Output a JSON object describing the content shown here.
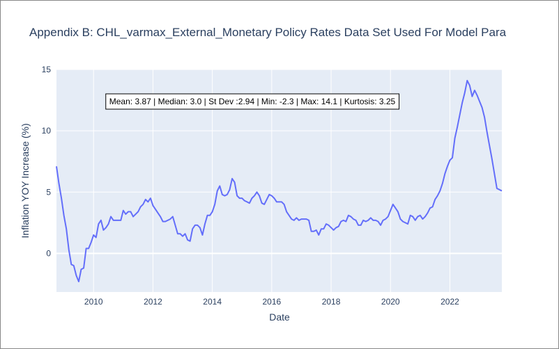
{
  "chart_data": {
    "type": "line",
    "title": "Appendix B: CHL_varmax_External_Monetary Policy Rates Data Set Used For Model Para",
    "x_label": "Date",
    "y_label": "Inflation YOY Increase (%)",
    "annotation": "Mean: 3.87 | Median: 3.0 | St Dev :2.94 | Min: -2.3 | Max: 14.1 | Kurtosis: 3.25",
    "color": "#636efa",
    "grid": true,
    "xlim": [
      2008.75,
      2023.75
    ],
    "xticks": [
      2010,
      2012,
      2014,
      2016,
      2018,
      2020,
      2022
    ],
    "ylim": [
      -3.15,
      15
    ],
    "yticks": [
      0,
      5,
      10,
      15
    ],
    "x": [
      2008.75,
      2008.833,
      2008.917,
      2009,
      2009.083,
      2009.167,
      2009.25,
      2009.333,
      2009.417,
      2009.5,
      2009.583,
      2009.667,
      2009.75,
      2009.833,
      2009.917,
      2010,
      2010.083,
      2010.167,
      2010.25,
      2010.333,
      2010.417,
      2010.5,
      2010.583,
      2010.667,
      2010.75,
      2010.833,
      2010.917,
      2011,
      2011.083,
      2011.167,
      2011.25,
      2011.333,
      2011.417,
      2011.5,
      2011.583,
      2011.667,
      2011.75,
      2011.833,
      2011.917,
      2012,
      2012.083,
      2012.167,
      2012.25,
      2012.333,
      2012.417,
      2012.5,
      2012.583,
      2012.667,
      2012.75,
      2012.833,
      2012.917,
      2013,
      2013.083,
      2013.167,
      2013.25,
      2013.333,
      2013.417,
      2013.5,
      2013.583,
      2013.667,
      2013.75,
      2013.833,
      2013.917,
      2014,
      2014.083,
      2014.167,
      2014.25,
      2014.333,
      2014.417,
      2014.5,
      2014.583,
      2014.667,
      2014.75,
      2014.833,
      2014.917,
      2015,
      2015.083,
      2015.167,
      2015.25,
      2015.333,
      2015.417,
      2015.5,
      2015.583,
      2015.667,
      2015.75,
      2015.833,
      2015.917,
      2016,
      2016.083,
      2016.167,
      2016.25,
      2016.333,
      2016.417,
      2016.5,
      2016.583,
      2016.667,
      2016.75,
      2016.833,
      2016.917,
      2017,
      2017.083,
      2017.167,
      2017.25,
      2017.333,
      2017.417,
      2017.5,
      2017.583,
      2017.667,
      2017.75,
      2017.833,
      2017.917,
      2018,
      2018.083,
      2018.167,
      2018.25,
      2018.333,
      2018.417,
      2018.5,
      2018.583,
      2018.667,
      2018.75,
      2018.833,
      2018.917,
      2019,
      2019.083,
      2019.167,
      2019.25,
      2019.333,
      2019.417,
      2019.5,
      2019.583,
      2019.667,
      2019.75,
      2019.833,
      2019.917,
      2020,
      2020.083,
      2020.167,
      2020.25,
      2020.333,
      2020.417,
      2020.5,
      2020.583,
      2020.667,
      2020.75,
      2020.833,
      2020.917,
      2021,
      2021.083,
      2021.167,
      2021.25,
      2021.333,
      2021.417,
      2021.5,
      2021.583,
      2021.667,
      2021.75,
      2021.833,
      2021.917,
      2022,
      2022.083,
      2022.167,
      2022.25,
      2022.333,
      2022.417,
      2022.5,
      2022.583,
      2022.667,
      2022.75,
      2022.833,
      2022.917,
      2023,
      2023.083,
      2023.167,
      2023.25,
      2023.333,
      2023.417,
      2023.5,
      2023.583,
      2023.667,
      2023.75
    ],
    "values": [
      7.1,
      5.7,
      4.5,
      3.1,
      2.0,
      0.3,
      -0.9,
      -1.0,
      -1.8,
      -2.3,
      -1.3,
      -1.2,
      0.4,
      0.4,
      0.9,
      1.5,
      1.3,
      2.4,
      2.7,
      1.9,
      2.1,
      2.4,
      3.0,
      2.7,
      2.7,
      2.7,
      2.7,
      3.5,
      3.2,
      3.4,
      3.4,
      3.0,
      3.2,
      3.4,
      3.8,
      4.0,
      4.4,
      4.2,
      4.5,
      3.9,
      3.6,
      3.3,
      3.0,
      2.6,
      2.6,
      2.7,
      2.8,
      3.0,
      2.3,
      1.6,
      1.6,
      1.4,
      1.6,
      1.1,
      1.0,
      2.0,
      2.3,
      2.3,
      2.1,
      1.5,
      2.4,
      3.1,
      3.1,
      3.4,
      4.0,
      5.1,
      5.5,
      4.8,
      4.7,
      4.8,
      5.2,
      6.1,
      5.8,
      4.7,
      4.5,
      4.5,
      4.3,
      4.2,
      4.1,
      4.5,
      4.7,
      5.0,
      4.7,
      4.1,
      4.0,
      4.4,
      4.8,
      4.7,
      4.5,
      4.2,
      4.2,
      4.2,
      4.0,
      3.4,
      3.1,
      2.8,
      2.7,
      2.9,
      2.7,
      2.8,
      2.8,
      2.8,
      2.7,
      1.8,
      1.8,
      1.9,
      1.5,
      2.0,
      2.0,
      2.4,
      2.3,
      2.1,
      1.9,
      2.1,
      2.2,
      2.6,
      2.7,
      2.6,
      3.1,
      3.0,
      2.8,
      2.7,
      2.3,
      2.3,
      2.7,
      2.6,
      2.7,
      2.9,
      2.7,
      2.7,
      2.6,
      2.3,
      2.7,
      2.8,
      3.0,
      3.5,
      4.0,
      3.7,
      3.4,
      2.8,
      2.6,
      2.5,
      2.4,
      3.1,
      3.0,
      2.7,
      3.0,
      3.1,
      2.8,
      3.0,
      3.3,
      3.7,
      3.8,
      4.4,
      4.7,
      5.1,
      5.7,
      6.5,
      7.1,
      7.6,
      7.8,
      9.4,
      10.3,
      11.3,
      12.3,
      13.1,
      14.1,
      13.7,
      12.8,
      13.3,
      12.9,
      12.4,
      11.9,
      11.1,
      9.9,
      8.8,
      7.7,
      6.5,
      5.3,
      5.2,
      5.1
    ]
  }
}
